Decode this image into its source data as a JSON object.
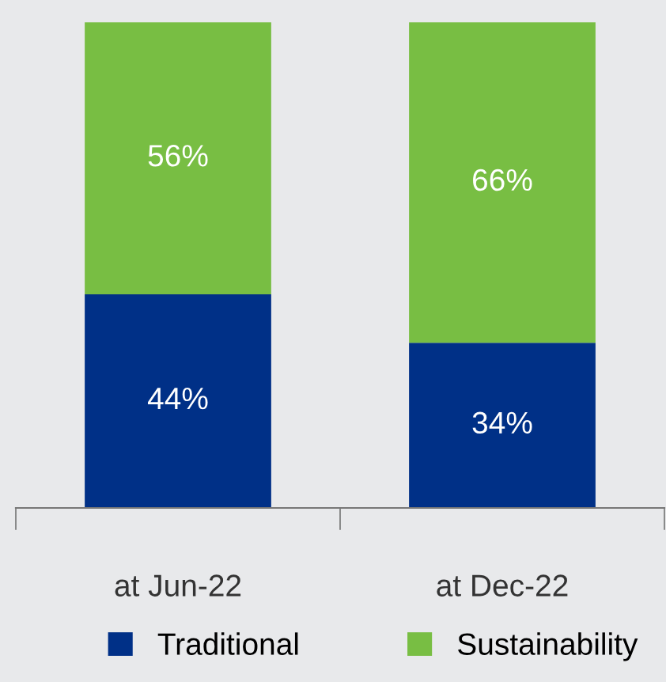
{
  "chart_data": {
    "type": "bar",
    "stacked": true,
    "categories": [
      "at Jun-22",
      "at Dec-22"
    ],
    "series": [
      {
        "name": "Traditional",
        "color": "#003087",
        "values": [
          44,
          34
        ],
        "value_labels": [
          "44%",
          "34%"
        ]
      },
      {
        "name": "Sustainability",
        "color": "#78be43",
        "values": [
          56,
          66
        ],
        "value_labels": [
          "56%",
          "66%"
        ]
      }
    ],
    "legend": "bottom",
    "grid": false
  }
}
